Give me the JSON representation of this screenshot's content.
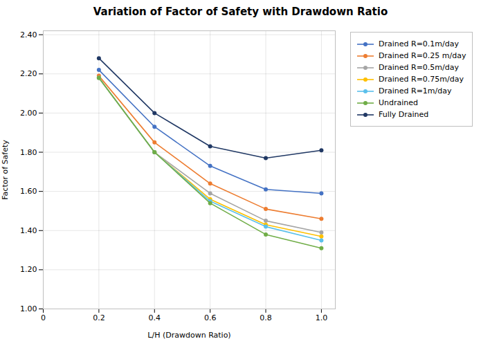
{
  "chart_data": {
    "type": "line",
    "title": "Variation of Factor of Safety with Drawdown Ratio",
    "xlabel": "L/H (Drawdown Ratio)",
    "ylabel": "Factor of Safety",
    "x": [
      0.2,
      0.4,
      0.6,
      0.8,
      1.0
    ],
    "series": [
      {
        "name": "Drained R=0.1m/day",
        "color": "#4472C4",
        "values": [
          2.22,
          1.93,
          1.73,
          1.61,
          1.59
        ]
      },
      {
        "name": "Drained R=0.25 m/day",
        "color": "#ED7D31",
        "values": [
          2.19,
          1.85,
          1.64,
          1.51,
          1.46
        ]
      },
      {
        "name": "Drained R=0.5m/day",
        "color": "#A5A5A5",
        "values": [
          2.18,
          1.8,
          1.59,
          1.45,
          1.39
        ]
      },
      {
        "name": "Drained R=0.75m/day",
        "color": "#FFC000",
        "values": [
          2.18,
          1.8,
          1.56,
          1.43,
          1.37
        ]
      },
      {
        "name": "Drained R=1m/day",
        "color": "#5BC0EB",
        "values": [
          2.18,
          1.8,
          1.55,
          1.42,
          1.35
        ]
      },
      {
        "name": "Undrained",
        "color": "#70AD47",
        "values": [
          2.18,
          1.8,
          1.54,
          1.38,
          1.31
        ]
      },
      {
        "name": "Fully Drained",
        "color": "#203864",
        "values": [
          2.28,
          2.0,
          1.83,
          1.77,
          1.81
        ]
      }
    ],
    "xlim": [
      0,
      1.05
    ],
    "ylim": [
      1.0,
      2.42
    ],
    "xticks": [
      0,
      0.2,
      0.4,
      0.6,
      0.8,
      {
        "value": 1.0,
        "label": "1.0"
      }
    ],
    "yticks": [
      {
        "value": 1.0,
        "label": "1.00"
      },
      {
        "value": 1.2,
        "label": "1.20"
      },
      {
        "value": 1.4,
        "label": "1.40"
      },
      {
        "value": 1.6,
        "label": "1.60"
      },
      {
        "value": 1.8,
        "label": "1.80"
      },
      {
        "value": 2.0,
        "label": "2.00"
      },
      {
        "value": 2.2,
        "label": "2.20"
      },
      {
        "value": 2.4,
        "label": "2.40"
      }
    ],
    "grid": true,
    "legend": "right",
    "marker": "circle"
  }
}
